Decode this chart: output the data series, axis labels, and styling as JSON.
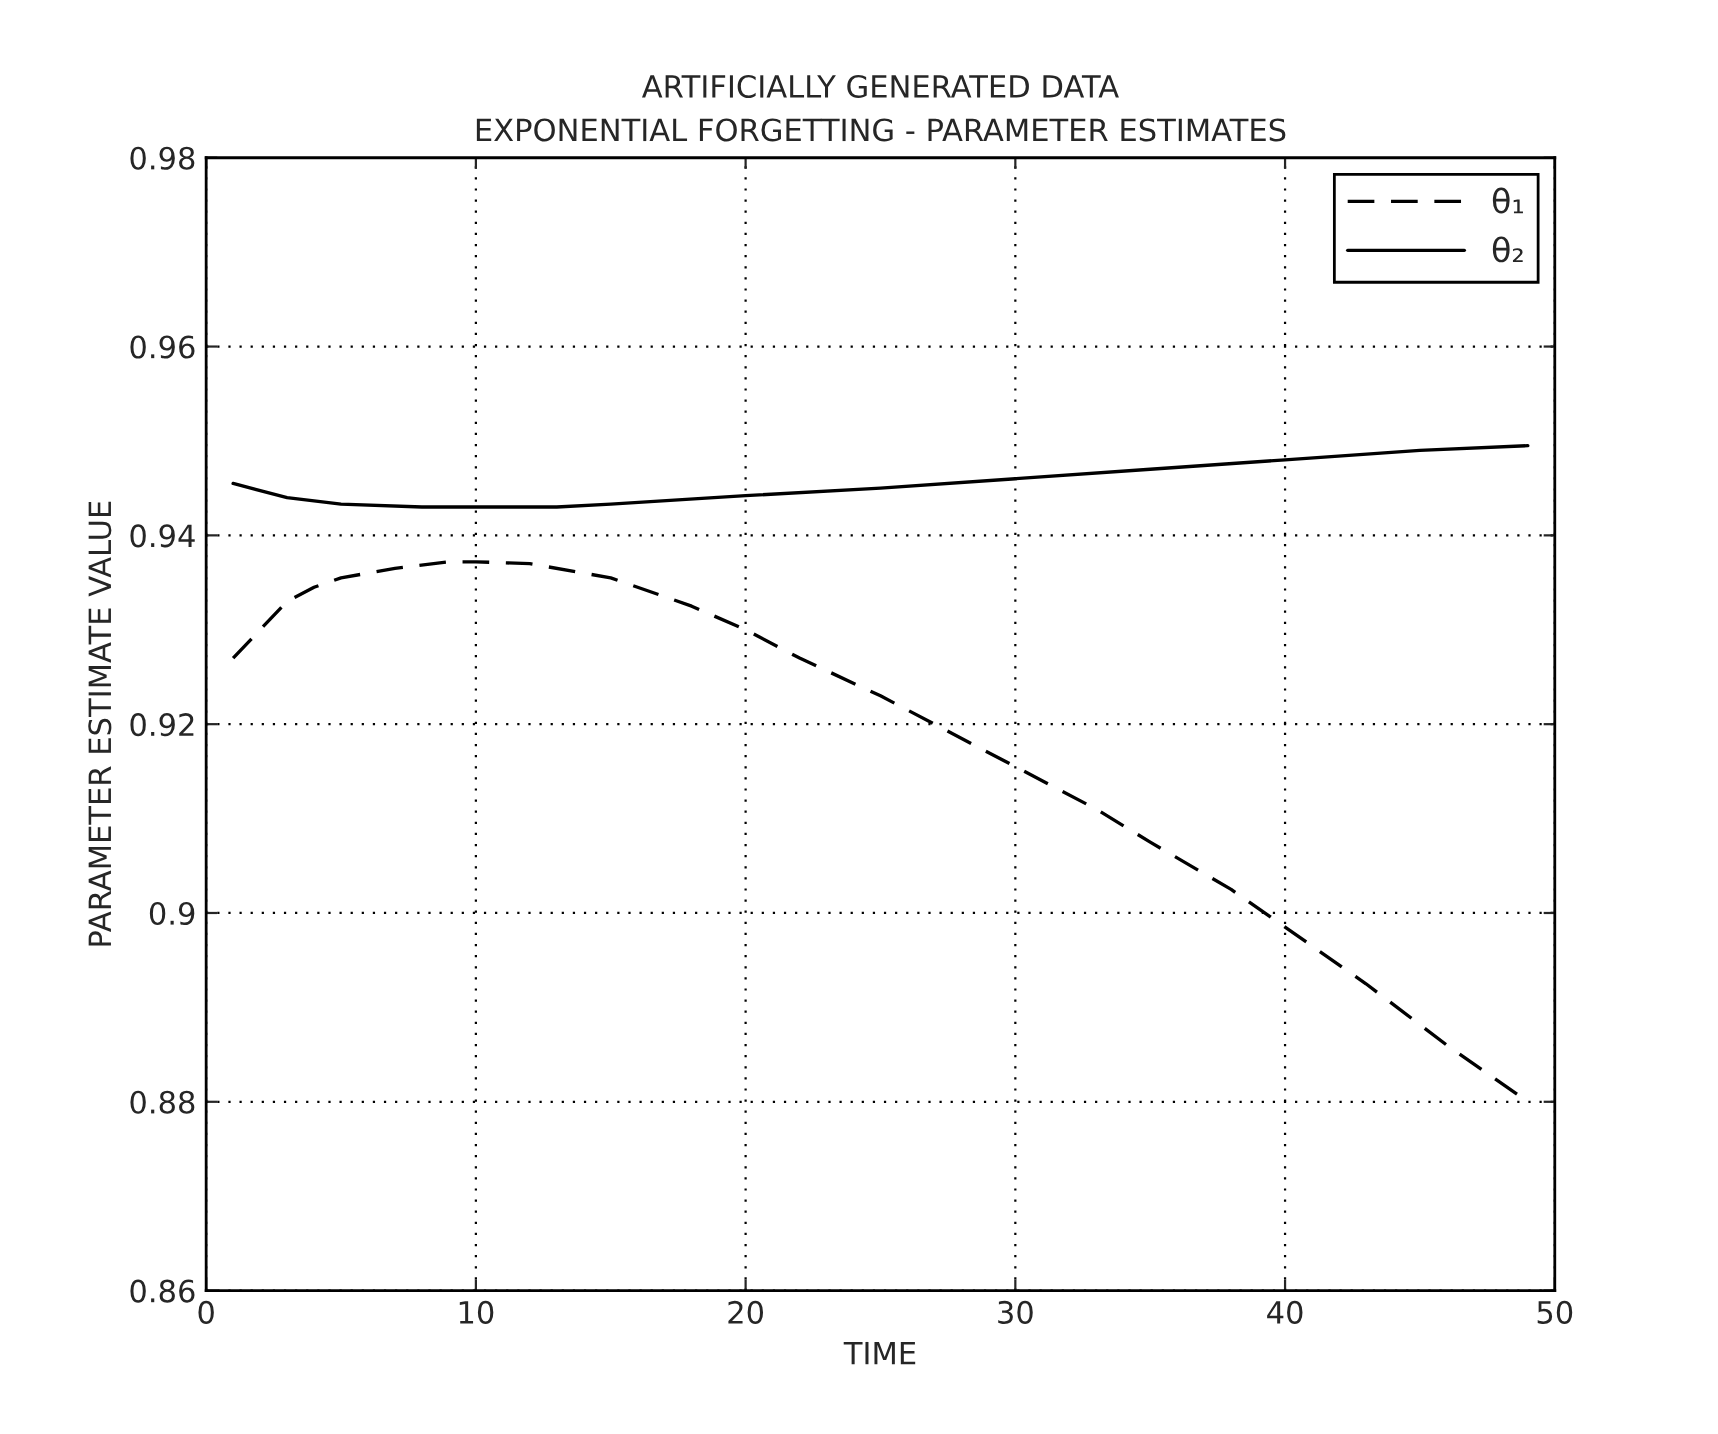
{
  "chart_data": {
    "type": "line",
    "title": "ARTIFICIALLY GENERATED DATA\nEXPONENTIAL FORGETTING - PARAMETER ESTIMATES",
    "xlabel": "TIME",
    "ylabel": "PARAMETER ESTIMATE VALUE",
    "xlim": [
      0,
      50
    ],
    "xticks": [
      0,
      10,
      20,
      30,
      40,
      50
    ],
    "ylim": [
      0.86,
      0.98
    ],
    "yticks": [
      {
        "value": 0.86,
        "label": "0.86"
      },
      {
        "value": 0.88,
        "label": "0.88"
      },
      {
        "value": 0.9,
        "label": "0.9"
      },
      {
        "value": 0.92,
        "label": "0.92"
      },
      {
        "value": 0.94,
        "label": "0.94"
      },
      {
        "value": 0.96,
        "label": "0.96"
      },
      {
        "value": 0.98,
        "label": "0.98"
      }
    ],
    "grid": true,
    "legend": "top right",
    "series": [
      {
        "name": "θ₁",
        "color": "#000000",
        "line_style": "dashed",
        "x": [
          1,
          2,
          3,
          4,
          5,
          7,
          9,
          10,
          12,
          15,
          18,
          20,
          22,
          25,
          27,
          30,
          33,
          35,
          38,
          40,
          43,
          46,
          49
        ],
        "values": [
          0.927,
          0.93,
          0.933,
          0.9345,
          0.9355,
          0.9365,
          0.9372,
          0.9372,
          0.937,
          0.9355,
          0.9325,
          0.93,
          0.927,
          0.923,
          0.92,
          0.9155,
          0.911,
          0.9075,
          0.9025,
          0.8985,
          0.8925,
          0.886,
          0.88
        ]
      },
      {
        "name": "θ₂",
        "color": "#000000",
        "line_style": "solid",
        "x": [
          1,
          3,
          5,
          8,
          10,
          13,
          15,
          20,
          25,
          30,
          35,
          40,
          45,
          49
        ],
        "values": [
          0.9455,
          0.944,
          0.9433,
          0.943,
          0.943,
          0.943,
          0.9433,
          0.9442,
          0.945,
          0.946,
          0.947,
          0.948,
          0.949,
          0.9495
        ]
      }
    ]
  }
}
